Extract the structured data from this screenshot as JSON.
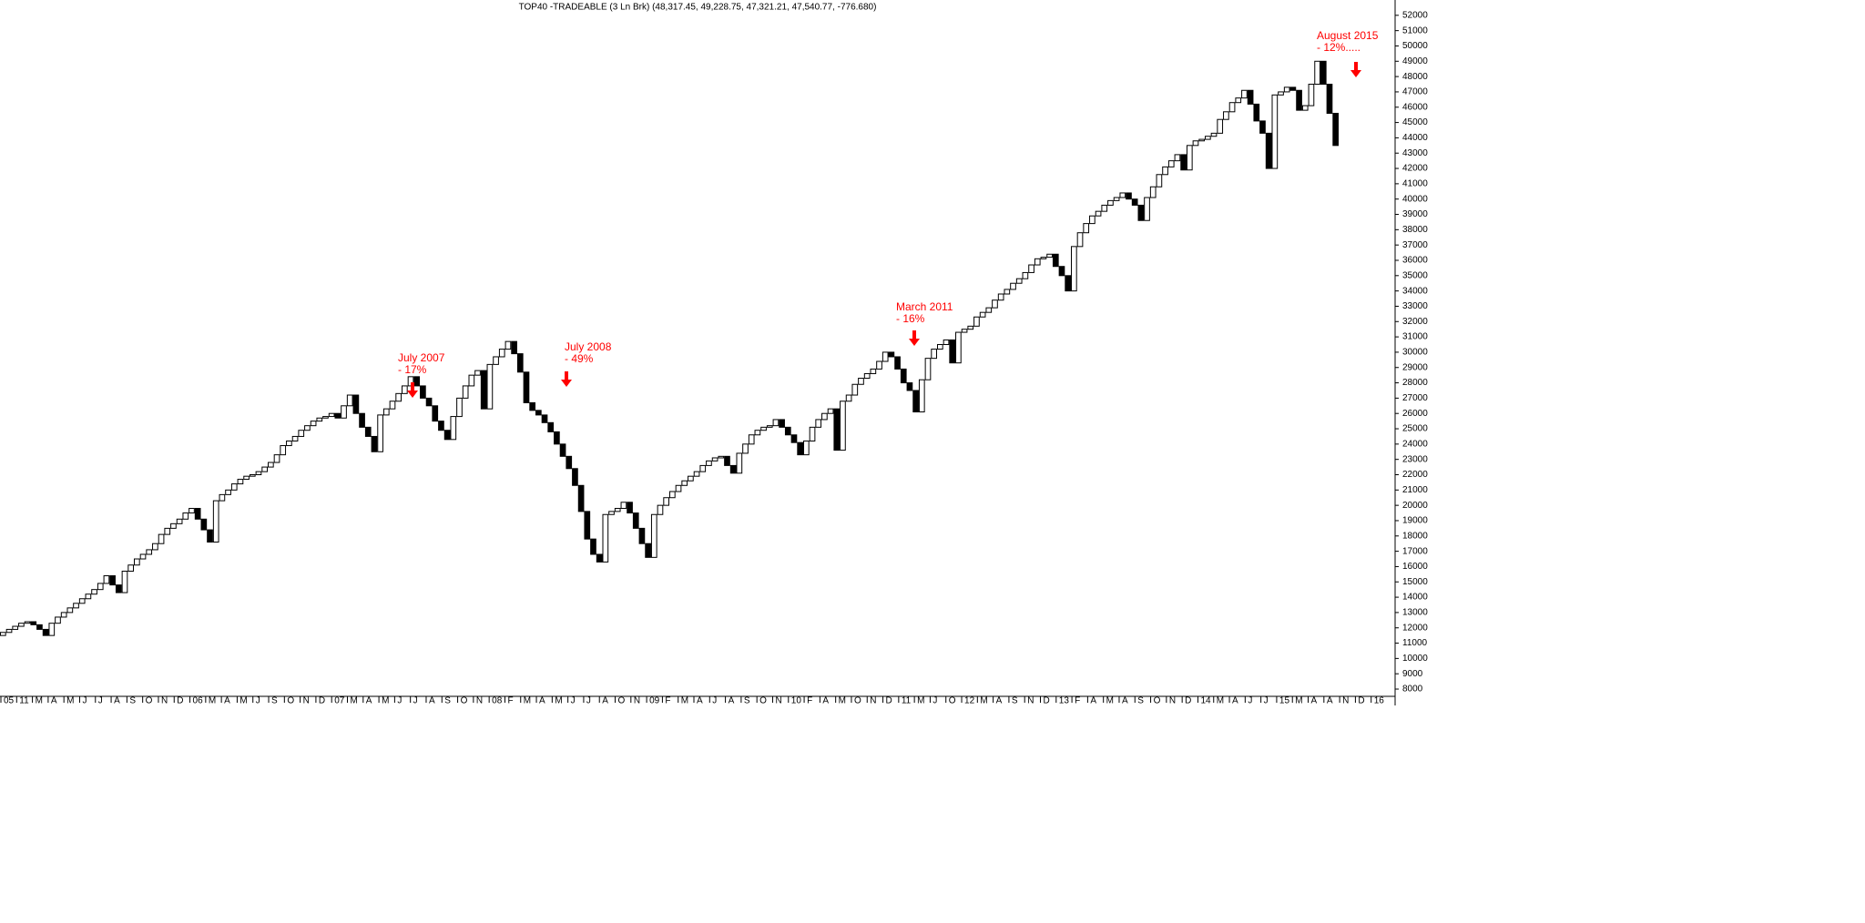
{
  "chart_data": {
    "type": "linebreak",
    "title": "TOP40 -TRADEABLE (3 Ln Brk)  (48,317.45, 49,228.75, 47,321.21, 47,540.77, -776.680)",
    "start": 11500,
    "values": [
      11700,
      11900,
      12100,
      12300,
      12400,
      12200,
      11900,
      11500,
      12300,
      12700,
      13000,
      13300,
      13600,
      13900,
      14200,
      14500,
      14900,
      15400,
      14800,
      14300,
      15700,
      16100,
      16500,
      16800,
      17100,
      17500,
      18100,
      18500,
      18800,
      19100,
      19500,
      19800,
      19100,
      18400,
      17600,
      20300,
      20700,
      21000,
      21400,
      21700,
      21900,
      22000,
      22200,
      22500,
      22800,
      23300,
      23900,
      24200,
      24500,
      24900,
      25200,
      25500,
      25700,
      25800,
      26000,
      25700,
      26500,
      27200,
      26000,
      25100,
      24500,
      23500,
      25900,
      26300,
      26800,
      27300,
      27800,
      28400,
      27800,
      27000,
      26500,
      25500,
      24900,
      24300,
      25800,
      27000,
      27800,
      28500,
      28800,
      26300,
      29200,
      29700,
      30200,
      30700,
      29900,
      28700,
      26700,
      26200,
      25900,
      25400,
      24800,
      24000,
      23200,
      22400,
      21300,
      19600,
      17800,
      16800,
      16300,
      19400,
      19600,
      19800,
      20200,
      19500,
      18500,
      17500,
      16600,
      19400,
      20000,
      20500,
      20900,
      21300,
      21600,
      21900,
      22200,
      22600,
      22900,
      23100,
      23200,
      22600,
      22100,
      23400,
      24000,
      24600,
      24900,
      25100,
      25200,
      25600,
      25100,
      24600,
      24100,
      23300,
      24200,
      25100,
      25600,
      26000,
      26300,
      23600,
      26800,
      27200,
      27900,
      28300,
      28600,
      28900,
      29400,
      30000,
      29700,
      28900,
      28000,
      27500,
      26100,
      28200,
      29600,
      30200,
      30500,
      30800,
      29300,
      31300,
      31500,
      31700,
      32300,
      32600,
      32900,
      33400,
      33800,
      34100,
      34500,
      34800,
      35200,
      35700,
      36100,
      36200,
      36400,
      35600,
      35000,
      34000,
      36900,
      37800,
      38400,
      38900,
      39200,
      39600,
      39900,
      40100,
      40400,
      40000,
      39600,
      38600,
      40100,
      40800,
      41600,
      42100,
      42500,
      42900,
      41900,
      43500,
      43800,
      43900,
      44100,
      44300,
      45200,
      45700,
      46300,
      46600,
      47100,
      46200,
      45100,
      44300,
      42000,
      46800,
      47000,
      47300,
      47100,
      45800,
      46100,
      47500,
      49000,
      47500,
      45600,
      43500
    ],
    "up_color": "#ffffff",
    "down_color": "#000000",
    "ylim": [
      7050,
      53000
    ],
    "yticks": [
      8000,
      9000,
      10000,
      11000,
      12000,
      13000,
      14000,
      15000,
      16000,
      17000,
      18000,
      19000,
      20000,
      21000,
      22000,
      23000,
      24000,
      25000,
      26000,
      27000,
      28000,
      29000,
      30000,
      31000,
      32000,
      33000,
      34000,
      35000,
      36000,
      37000,
      38000,
      39000,
      40000,
      41000,
      42000,
      43000,
      44000,
      45000,
      46000,
      47000,
      48000,
      49000,
      50000,
      51000,
      52000
    ],
    "x_labels": [
      "05",
      "11",
      "M",
      "A",
      "M",
      "J",
      "J",
      "A",
      "S",
      "O",
      "N",
      "D",
      "06",
      "M",
      "A",
      "M",
      "J",
      "S",
      "O",
      "N",
      "D",
      "07",
      "M",
      "A",
      "M",
      "J",
      "J",
      "A",
      "S",
      "O",
      "N",
      "08",
      "F",
      "M",
      "A",
      "M",
      "J",
      "J",
      "A",
      "O",
      "N",
      "09",
      "F",
      "M",
      "A",
      "J",
      "A",
      "S",
      "O",
      "N",
      "10",
      "F",
      "A",
      "M",
      "O",
      "N",
      "D",
      "11",
      "M",
      "J",
      "O",
      "12",
      "M",
      "A",
      "S",
      "N",
      "D",
      "13",
      "F",
      "A",
      "M",
      "A",
      "S",
      "O",
      "N",
      "D",
      "14",
      "M",
      "A",
      "J",
      "J",
      "15",
      "M",
      "A",
      "A",
      "N",
      "D",
      "16"
    ],
    "annotations": [
      {
        "text": "July 2007",
        "sub": "- 17%"
      },
      {
        "text": "July 2008",
        "sub": "- 49%"
      },
      {
        "text": "March 2011",
        "sub": "- 16%"
      },
      {
        "text": "August 2015",
        "sub": "- 12%....."
      }
    ],
    "annotation_color": "#ff0000"
  }
}
